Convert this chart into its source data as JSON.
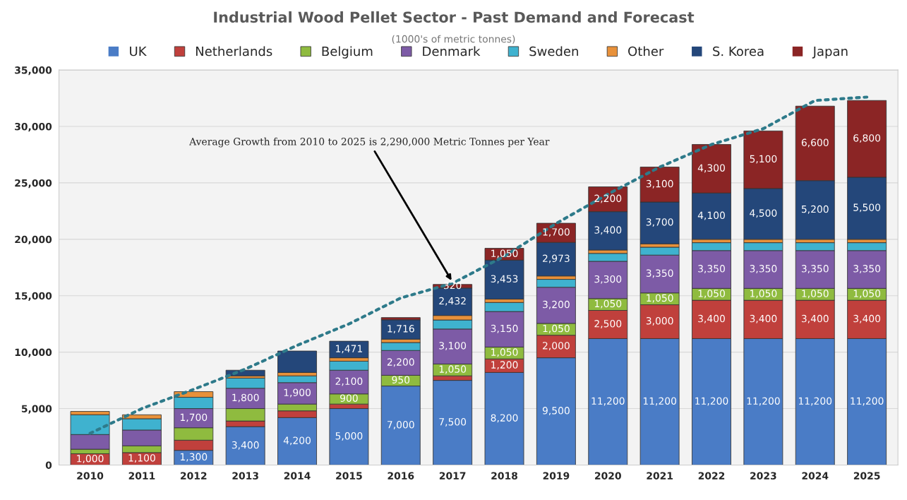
{
  "chart_data": {
    "type": "bar",
    "title": "Industrial Wood Pellet Sector - Past Demand and Forecast",
    "subtitle": "(1000's of metric tonnes)",
    "stacked": true,
    "legend": "top",
    "grid": "y",
    "categories": [
      "2010",
      "2011",
      "2012",
      "2013",
      "2014",
      "2015",
      "2016",
      "2017",
      "2018",
      "2019",
      "2020",
      "2021",
      "2022",
      "2023",
      "2024",
      "2025"
    ],
    "ylim": [
      0,
      35000
    ],
    "yticks": [
      0,
      {
        "value": 5000,
        "label": "5,000"
      },
      {
        "value": 10000,
        "label": "10,000"
      },
      {
        "value": 15000,
        "label": "15,000"
      },
      {
        "value": 20000,
        "label": "20,000"
      },
      {
        "value": 25000,
        "label": "25,000"
      },
      {
        "value": 30000,
        "label": "30,000"
      },
      {
        "value": 35000,
        "label": "35,000"
      }
    ],
    "series": [
      {
        "name": "UK",
        "color": "#4a7cc6",
        "values": [
          0,
          0,
          1300,
          3400,
          4200,
          5000,
          7000,
          7500,
          8200,
          9500,
          11200,
          11200,
          11200,
          11200,
          11200,
          11200
        ],
        "value_labels": [
          null,
          null,
          "1,300",
          "3,400",
          "4,200",
          "5,000",
          "7,000",
          "7,500",
          "8,200",
          "9,500",
          "11,200",
          "11,200",
          "11,200",
          "11,200",
          "11,200",
          "11,200"
        ]
      },
      {
        "name": "Netherlands",
        "color": "#c0403c",
        "values": [
          1000,
          1100,
          900,
          500,
          600,
          400,
          null,
          400,
          1200,
          2000,
          2500,
          3000,
          3400,
          3400,
          3400,
          3400
        ],
        "value_labels": [
          "1,000",
          "1,100",
          null,
          null,
          null,
          null,
          null,
          null,
          "1,200",
          "2,000",
          "2,500",
          "3,000",
          "3,400",
          "3,400",
          "3,400",
          "3,400"
        ]
      },
      {
        "name": "Belgium",
        "color": "#8fbb3f",
        "values": [
          400,
          600,
          1100,
          1100,
          600,
          900,
          950,
          1050,
          1050,
          1050,
          1050,
          1050,
          1050,
          1050,
          1050,
          1050
        ],
        "value_labels": [
          null,
          null,
          null,
          null,
          null,
          "900",
          "950",
          "1,050",
          "1,050",
          "1,050",
          "1,050",
          "1,050",
          "1,050",
          "1,050",
          "1,050",
          "1,050"
        ]
      },
      {
        "name": "Denmark",
        "color": "#7d5ba6",
        "values": [
          1300,
          1400,
          1700,
          1800,
          1900,
          2100,
          2200,
          3100,
          3150,
          3200,
          3300,
          3350,
          3350,
          3350,
          3350,
          3350
        ],
        "value_labels": [
          null,
          null,
          "1,700",
          "1,800",
          "1,900",
          "2,100",
          "2,200",
          "3,100",
          "3,150",
          "3,200",
          "3,300",
          "3,350",
          "3,350",
          "3,350",
          "3,350",
          "3,350"
        ]
      },
      {
        "name": "Sweden",
        "color": "#3fb2cf",
        "values": [
          1750,
          1000,
          1000,
          900,
          600,
          800,
          700,
          800,
          800,
          700,
          700,
          700,
          700,
          700,
          700,
          700
        ]
      },
      {
        "name": "Other",
        "color": "#e8913a",
        "values": [
          300,
          350,
          500,
          200,
          300,
          300,
          300,
          400,
          300,
          300,
          300,
          300,
          300,
          300,
          300,
          300
        ]
      },
      {
        "name": "S. Korea",
        "color": "#24477a",
        "values": [
          0,
          0,
          0,
          500,
          1900,
          1471,
          1716,
          2432,
          3453,
          2973,
          3400,
          3700,
          4100,
          4500,
          5200,
          5500
        ],
        "value_labels": [
          null,
          null,
          null,
          null,
          null,
          "1,471",
          "1,716",
          "2,432",
          "3,453",
          "2,973",
          "3,400",
          "3,700",
          "4,100",
          "4,500",
          "5,200",
          "5,500"
        ]
      },
      {
        "name": "Japan",
        "color": "#8b2525",
        "values": [
          0,
          0,
          0,
          0,
          0,
          0,
          200,
          320,
          1050,
          1700,
          2200,
          3100,
          4300,
          5100,
          6600,
          6800
        ],
        "value_labels": [
          null,
          null,
          null,
          null,
          null,
          null,
          null,
          "320",
          "1,050",
          "1,700",
          "2,200",
          "3,100",
          "4,300",
          "5,100",
          "6,600",
          "6,800"
        ]
      },
      {
        "type": "line",
        "color": "#2e7a8a",
        "line_style": "dotted",
        "values": [
          2800,
          5000,
          6700,
          8500,
          10600,
          12500,
          14800,
          16100,
          18500,
          21400,
          24000,
          26400,
          28400,
          29800,
          32300,
          32600
        ]
      }
    ],
    "annotations": [
      {
        "text": "Average Growth from 2010 to 2025 is 2,290,000 Metric Tonnes per Year",
        "x": "2017",
        "y": 16200
      }
    ]
  }
}
